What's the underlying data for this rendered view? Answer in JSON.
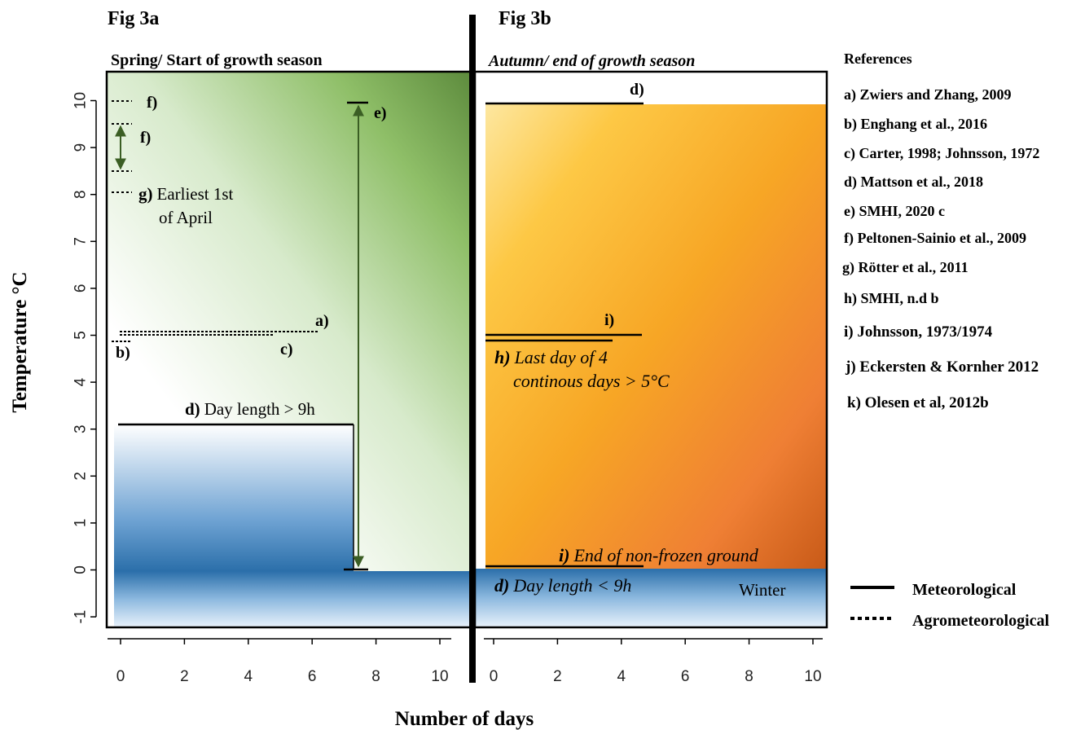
{
  "colors": {
    "spring_green": "#5c8a3c",
    "winter_blue": "#2b6faa",
    "autumn_yellow": "#fdd35a",
    "autumn_orange": "#f39a1e",
    "autumn_dark": "#c85a18",
    "arrow_green": "#3b5e24"
  },
  "figure": {
    "fig3a_label": "Fig 3a",
    "fig3b_label": "Fig 3b",
    "panel_a_title": "Spring/ Start of growth season",
    "panel_b_title": "Autumn/ end of growth season",
    "ylabel": "Temperature °C",
    "xlabel": "Number of days"
  },
  "chart_data": [
    {
      "type": "line",
      "panel": "Fig 3a",
      "title": "Spring/ Start of growth season",
      "xlabel": "Number of days",
      "ylabel": "Temperature °C",
      "xlim": [
        -0.5,
        10.5
      ],
      "ylim": [
        -1.2,
        10.6
      ],
      "xticks": [
        "0",
        "2",
        "4",
        "6",
        "8",
        "10"
      ],
      "yticks": [
        "-1",
        "0",
        "1",
        "2",
        "3",
        "4",
        "5",
        "6",
        "7",
        "8",
        "9",
        "10"
      ],
      "grid": false,
      "thresholds": [
        {
          "ref": "f)",
          "temp": 10,
          "x_from": -0.2,
          "x_to": 0.3,
          "style": "dotted",
          "label": "f)"
        },
        {
          "ref": "f)",
          "temp_range": [
            8.5,
            9.5
          ],
          "x": 0,
          "style": "dotted-arrow",
          "label": "f)"
        },
        {
          "ref": "g)",
          "temp": 8,
          "x_from": -0.2,
          "x_to": 0.3,
          "style": "dotted",
          "label_ref": "g)",
          "label_text": "Earliest 1st",
          "label_text2": "of April"
        },
        {
          "ref": "a)",
          "temp": 5.05,
          "x_from": 0,
          "x_to": 6.2,
          "style": "dotted",
          "label": "a)"
        },
        {
          "ref": "b)",
          "temp": 4.85,
          "x_from": -0.2,
          "x_to": 0.3,
          "style": "dotted",
          "label": "b)"
        },
        {
          "ref": "c)",
          "temp": 4.98,
          "x_from": 0,
          "x_to": 4.8,
          "style": "dotted",
          "label": "c)"
        },
        {
          "ref": "d)",
          "temp": 3.1,
          "x_from": 0,
          "x_to": 7.3,
          "style": "solid",
          "label_ref": "d)",
          "label_text": "Day length > 9h"
        },
        {
          "ref": "e)",
          "temp_range": [
            0,
            10
          ],
          "x": 7.3,
          "style": "solid-arrow",
          "label": "e)"
        }
      ]
    },
    {
      "type": "line",
      "panel": "Fig 3b",
      "title": "Autumn/ end of growth season",
      "xlabel": "Number of days",
      "ylabel": "Temperature °C",
      "xlim": [
        -0.3,
        10.4
      ],
      "ylim": [
        -1.2,
        10.6
      ],
      "xticks": [
        "0",
        "2",
        "4",
        "6",
        "8",
        "10"
      ],
      "grid": false,
      "thresholds": [
        {
          "ref": "d)",
          "temp": 9.9,
          "x_from": -0.2,
          "x_to": 4.6,
          "style": "solid",
          "label": "d)"
        },
        {
          "ref": "i)",
          "temp": 5.0,
          "x_from": -0.2,
          "x_to": 4.6,
          "style": "solid",
          "label": "i)"
        },
        {
          "ref": "h)",
          "temp": 4.85,
          "x_from": -0.2,
          "x_to": 3.7,
          "style": "solid",
          "label_ref": "h)",
          "label_text": "Last day of 4",
          "label_text2": "continous days > 5°C"
        },
        {
          "ref": "i)",
          "temp": 0.1,
          "x_from": -0.2,
          "x_to": 4.6,
          "style": "solid",
          "label_ref": "i)",
          "label_text": "End of non-frozen ground"
        },
        {
          "ref": "d)",
          "temp": -0.3,
          "label_ref": "d)",
          "label_text": "Day length < 9h"
        }
      ],
      "annotations": [
        "Winter"
      ]
    }
  ],
  "references": {
    "title": "References",
    "items": [
      "a) Zwiers and Zhang, 2009",
      "b) Enghang et al., 2016",
      "c) Carter, 1998; Johnsson, 1972",
      "d) Mattson et al., 2018",
      "e) SMHI, 2020 c",
      "f) Peltonen-Sainio et al., 2009",
      "g) Rötter et al., 2011",
      "h) SMHI, n.d b",
      "i) Johnsson, 1973/1974",
      "j) Eckersten & Kornher 2012",
      "k) Olesen et al, 2012b"
    ]
  },
  "legend": {
    "items": [
      {
        "label": "Meteorological",
        "style": "solid"
      },
      {
        "label": "Agrometeorological",
        "style": "dotted"
      }
    ]
  }
}
